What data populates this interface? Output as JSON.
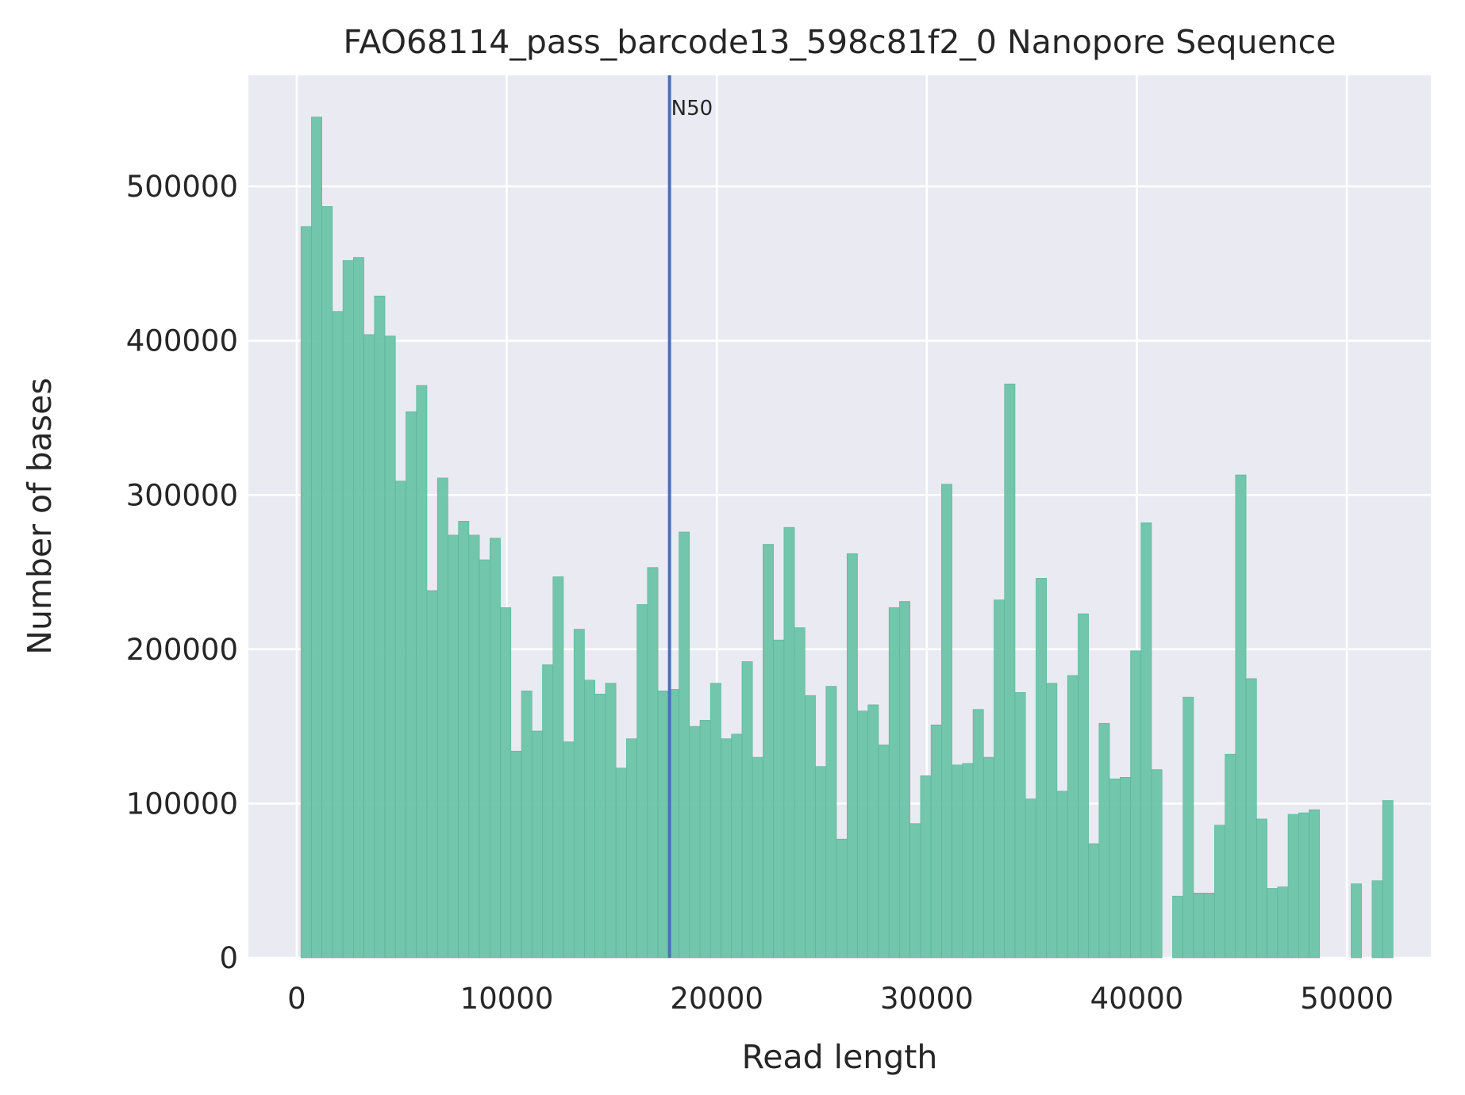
{
  "chart_data": {
    "type": "bar",
    "title": "FAO68114_pass_barcode13_598c81f2_0 Nanopore Sequence",
    "xlabel": "Read length",
    "ylabel": "Number of bases",
    "xlim": [
      -2300,
      54000
    ],
    "ylim": [
      0,
      572000
    ],
    "grid": true,
    "bar_color": "#66c2a5",
    "background_color": "#eaeaf2",
    "line_color": "#4c72b0",
    "x_ticks": [
      0,
      10000,
      20000,
      30000,
      40000,
      50000
    ],
    "x_tick_labels": [
      "0",
      "10000",
      "20000",
      "30000",
      "40000",
      "50000"
    ],
    "y_ticks": [
      0,
      100000,
      200000,
      300000,
      400000,
      500000
    ],
    "y_tick_labels": [
      "0",
      "100000",
      "200000",
      "300000",
      "400000",
      "500000"
    ],
    "bins": {
      "start": 200,
      "width": 500,
      "values": [
        474000,
        545000,
        487000,
        419000,
        452000,
        454000,
        404000,
        429000,
        403000,
        309000,
        354000,
        371000,
        238000,
        311000,
        274000,
        283000,
        274000,
        258000,
        272000,
        227000,
        134000,
        173000,
        147000,
        190000,
        247000,
        140000,
        213000,
        180000,
        171000,
        178000,
        123000,
        142000,
        229000,
        253000,
        173000,
        174000,
        276000,
        150000,
        154000,
        178000,
        142000,
        145000,
        192000,
        130000,
        268000,
        206000,
        279000,
        214000,
        170000,
        124000,
        176000,
        77000,
        262000,
        160000,
        164000,
        138000,
        227000,
        231000,
        87000,
        118000,
        151000,
        307000,
        125000,
        126000,
        161000,
        130000,
        232000,
        372000,
        172000,
        103000,
        246000,
        178000,
        108000,
        183000,
        223000,
        74000,
        152000,
        116000,
        117000,
        199000,
        282000,
        122000,
        0,
        40000,
        169000,
        42000,
        42000,
        86000,
        132000,
        313000,
        181000,
        90000,
        45000,
        46000,
        93000,
        94000,
        96000,
        0,
        0,
        0,
        48000,
        0,
        50000,
        102000
      ]
    },
    "vline": {
      "x": 17750,
      "label": "N50"
    }
  }
}
